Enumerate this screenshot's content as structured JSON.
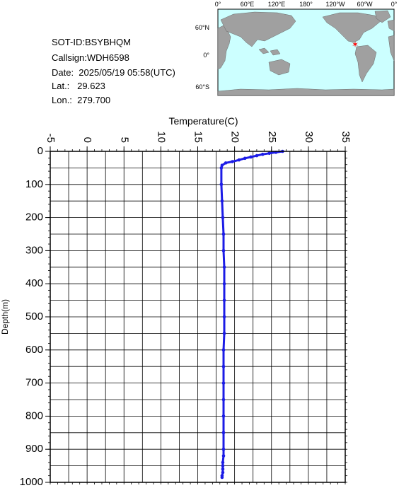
{
  "info": {
    "sot_id": "SOT-ID:BSYBHQM",
    "callsign": "Callsign:WDH6598",
    "date": "Date:  2025/05/19 05:58(UTC)",
    "lat": "Lat.:   29.623",
    "lon": "Lon.:  279.700"
  },
  "map": {
    "top_labels": [
      "0°",
      "60°E",
      "120°E",
      "180°",
      "120°W",
      "60°W",
      "0°"
    ],
    "lat_labels": [
      "60°N",
      "0°",
      "60°S"
    ],
    "ocean_color": "#ccffff",
    "land_color": "#a0a0a0",
    "marker_color": "#ff0000"
  },
  "chart_data": {
    "type": "line",
    "xlabel": "Temperature(C)",
    "ylabel": "Depth(m)",
    "xlim": [
      -5,
      35
    ],
    "ylim": [
      0,
      1000
    ],
    "y_inverted": true,
    "x_ticks": [
      -5,
      0,
      5,
      10,
      15,
      20,
      25,
      30,
      35
    ],
    "y_ticks": [
      0,
      100,
      200,
      300,
      400,
      500,
      600,
      700,
      800,
      900,
      1000
    ],
    "grid": true,
    "series_color": "#1c1ce6",
    "series": [
      {
        "x": [
          26.5,
          25.6,
          24.7,
          23.8,
          23.0,
          22.2,
          21.4,
          20.6,
          19.7,
          18.8,
          18.3,
          18.2,
          18.2,
          18.3,
          18.4,
          18.5,
          18.5,
          18.6,
          18.6,
          18.6,
          18.6,
          18.6,
          18.5,
          18.5,
          18.5,
          18.5,
          18.5,
          18.5,
          18.5,
          18.5,
          18.4,
          18.4,
          18.4,
          18.4,
          18.3,
          18.3
        ],
        "y": [
          0,
          3,
          6,
          9,
          13,
          17,
          21,
          26,
          31,
          35,
          42,
          50,
          100,
          150,
          200,
          250,
          300,
          350,
          400,
          450,
          500,
          550,
          600,
          650,
          700,
          750,
          800,
          850,
          900,
          920,
          940,
          950,
          960,
          970,
          980,
          985
        ]
      }
    ]
  }
}
